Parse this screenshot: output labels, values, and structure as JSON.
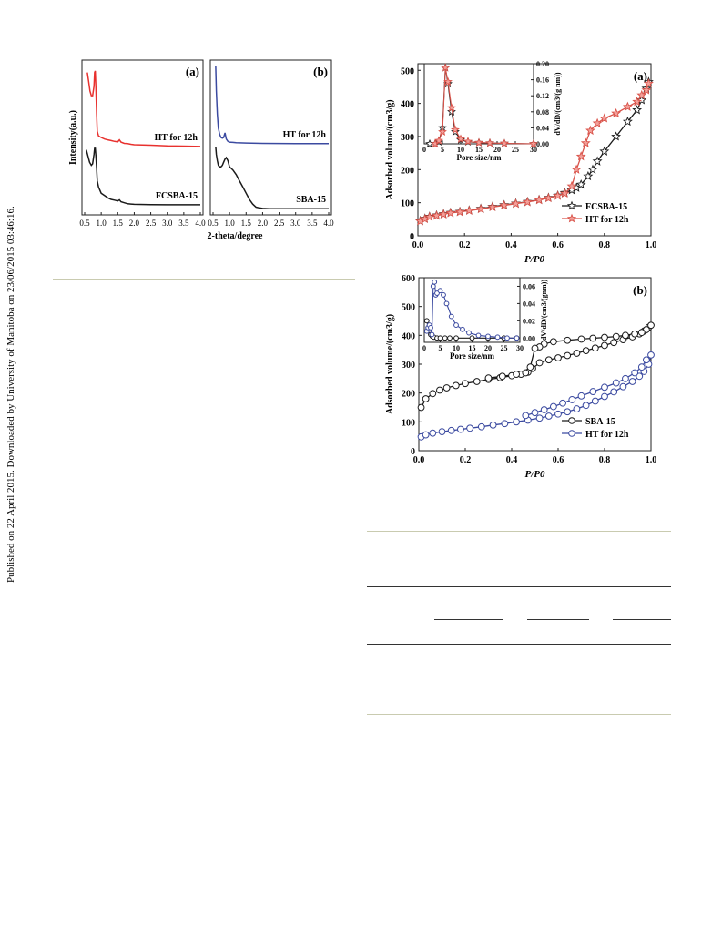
{
  "side_note": "Published on 22 April 2015. Downloaded by University of Manitoba on 23/06/2015 03:46:16.",
  "xrd": {
    "xlabel": "2-theta/degree",
    "ylabel": "Intensity(a.u.)",
    "xticks": [
      "0.5",
      "1.0",
      "1.5",
      "2.0",
      "2.5",
      "3.0",
      "3.5",
      "4.0"
    ],
    "xlim": [
      0.5,
      4.0
    ],
    "panels": [
      {
        "label": "(a)",
        "series": [
          {
            "name": "HT for 12h",
            "color": "#e8312e",
            "x": [
              0.58,
              0.62,
              0.66,
              0.7,
              0.74,
              0.78,
              0.8,
              0.82,
              0.84,
              0.86,
              0.88,
              0.92,
              1.0,
              1.1,
              1.2,
              1.3,
              1.4,
              1.5,
              1.55,
              1.6,
              1.7,
              1.8,
              1.9,
              2.0,
              2.5,
              3.0,
              3.5,
              4.0
            ],
            "y": [
              9.2,
              8.6,
              8.0,
              7.7,
              7.7,
              8.3,
              9.2,
              9.3,
              8.2,
              6.5,
              5.4,
              5.1,
              5.0,
              4.9,
              4.85,
              4.8,
              4.75,
              4.72,
              4.85,
              4.7,
              4.62,
              4.6,
              4.56,
              4.53,
              4.5,
              4.46,
              4.44,
              4.42
            ]
          },
          {
            "name": "FCSBA-15",
            "color": "#1a1a1a",
            "x": [
              0.55,
              0.6,
              0.65,
              0.7,
              0.74,
              0.78,
              0.8,
              0.82,
              0.84,
              0.86,
              0.88,
              0.92,
              1.0,
              1.1,
              1.2,
              1.3,
              1.4,
              1.5,
              1.55,
              1.6,
              1.7,
              1.8,
              1.9,
              2.0,
              2.5,
              3.0,
              3.5,
              4.0
            ],
            "y": [
              4.2,
              3.8,
              3.4,
              3.2,
              3.3,
              3.9,
              4.3,
              4.3,
              3.8,
              3.0,
              2.2,
              1.8,
              1.4,
              1.25,
              1.1,
              1.0,
              0.95,
              0.9,
              0.97,
              0.85,
              0.78,
              0.72,
              0.7,
              0.68,
              0.66,
              0.65,
              0.65,
              0.65
            ]
          }
        ]
      },
      {
        "label": "(b)",
        "series": [
          {
            "name": "HT for 12h",
            "color": "#3b4aa0",
            "x": [
              0.58,
              0.6,
              0.63,
              0.66,
              0.7,
              0.74,
              0.78,
              0.82,
              0.86,
              0.9,
              0.95,
              1.0,
              1.1,
              1.2,
              1.5,
              2.0,
              2.5,
              3.0,
              3.5,
              4.0
            ],
            "y": [
              9.6,
              8.0,
              6.5,
              5.6,
              5.2,
              5.0,
              4.95,
              5.0,
              5.3,
              4.9,
              4.75,
              4.7,
              4.68,
              4.66,
              4.64,
              4.62,
              4.61,
              4.6,
              4.6,
              4.6
            ]
          },
          {
            "name": "SBA-15",
            "color": "#1a1a1a",
            "x": [
              0.58,
              0.6,
              0.63,
              0.66,
              0.7,
              0.74,
              0.78,
              0.82,
              0.86,
              0.9,
              0.95,
              1.0,
              1.05,
              1.1,
              1.2,
              1.3,
              1.4,
              1.5,
              1.6,
              1.7,
              1.8,
              1.9,
              2.0,
              2.2,
              2.5,
              3.0,
              3.5,
              4.0
            ],
            "y": [
              4.4,
              3.9,
              3.5,
              3.2,
              3.1,
              3.1,
              3.2,
              3.4,
              3.6,
              3.7,
              3.5,
              3.1,
              3.0,
              2.9,
              2.6,
              2.2,
              1.8,
              1.4,
              1.0,
              0.7,
              0.5,
              0.45,
              0.42,
              0.4,
              0.4,
              0.4,
              0.4,
              0.4
            ]
          }
        ]
      }
    ]
  },
  "chart_data": [
    {
      "type": "line",
      "label": "(a)",
      "xlabel": "P/P0",
      "ylabel": "Adsorbed volume/(cm3/g)",
      "xlim": [
        0,
        1.0
      ],
      "ylim": [
        0,
        520
      ],
      "xticks": [
        "0.0",
        "0.2",
        "0.4",
        "0.6",
        "0.8",
        "1.0"
      ],
      "yticks": [
        "0",
        "100",
        "200",
        "300",
        "400",
        "500"
      ],
      "legend_position": "bottom-right",
      "series": [
        {
          "name": "FCSBA-15",
          "color": "#1a1a1a",
          "marker": "star-open",
          "x": [
            0.01,
            0.03,
            0.05,
            0.08,
            0.11,
            0.14,
            0.18,
            0.22,
            0.27,
            0.32,
            0.37,
            0.42,
            0.47,
            0.52,
            0.56,
            0.6,
            0.63,
            0.66,
            0.68,
            0.7,
            0.73,
            0.75,
            0.77,
            0.8,
            0.85,
            0.9,
            0.94,
            0.96,
            0.98,
            0.99
          ],
          "y": [
            45,
            52,
            58,
            62,
            66,
            70,
            73,
            77,
            82,
            88,
            93,
            98,
            103,
            109,
            115,
            122,
            130,
            138,
            145,
            155,
            180,
            200,
            225,
            255,
            300,
            345,
            380,
            410,
            445,
            465
          ]
        },
        {
          "name": "HT for 12h",
          "color": "#d9534a",
          "marker": "star-filled",
          "x": [
            0.01,
            0.03,
            0.05,
            0.08,
            0.11,
            0.14,
            0.18,
            0.22,
            0.27,
            0.32,
            0.37,
            0.42,
            0.47,
            0.52,
            0.56,
            0.6,
            0.63,
            0.66,
            0.68,
            0.7,
            0.72,
            0.74,
            0.77,
            0.8,
            0.85,
            0.9,
            0.94,
            0.96,
            0.98,
            0.99
          ],
          "y": [
            44,
            51,
            57,
            61,
            65,
            69,
            72,
            76,
            81,
            87,
            92,
            97,
            102,
            108,
            114,
            121,
            128,
            150,
            200,
            240,
            280,
            318,
            340,
            355,
            370,
            390,
            405,
            425,
            440,
            460
          ]
        }
      ]
    },
    {
      "type": "line",
      "label": "(a) inset",
      "xlabel": "Pore size/nm",
      "ylabel": "dV/dD/(cm3/(g nm))",
      "xlim": [
        0,
        30
      ],
      "ylim": [
        0,
        0.2
      ],
      "xticks": [
        "0",
        "5",
        "10",
        "15",
        "20",
        "25",
        "30"
      ],
      "yticks": [
        "0.00",
        "0.04",
        "0.08",
        "0.12",
        "0.16",
        "0.20"
      ],
      "series": [
        {
          "name": "FCSBA-15",
          "color": "#1a1a1a",
          "x": [
            1.5,
            3.0,
            4.0,
            5.0,
            5.8,
            6.5,
            7.5,
            8.5,
            10,
            12,
            15,
            18,
            22,
            30
          ],
          "y": [
            0.0,
            0.0,
            0.005,
            0.04,
            0.19,
            0.15,
            0.08,
            0.03,
            0.01,
            0.005,
            0.003,
            0.002,
            0.001,
            0.0
          ]
        },
        {
          "name": "HT for 12h",
          "color": "#d9534a",
          "x": [
            3.0,
            4.0,
            5.0,
            5.8,
            6.5,
            7.5,
            8.5,
            10,
            12,
            15,
            18,
            22,
            30
          ],
          "y": [
            0.0,
            0.008,
            0.03,
            0.19,
            0.155,
            0.09,
            0.035,
            0.012,
            0.006,
            0.003,
            0.002,
            0.001,
            0.0
          ]
        }
      ]
    },
    {
      "type": "line",
      "label": "(b)",
      "xlabel": "P/P0",
      "ylabel": "Adsorbed volume/(cm3/g)",
      "xlim": [
        0,
        1.0
      ],
      "ylim": [
        0,
        600
      ],
      "xticks": [
        "0.0",
        "0.2",
        "0.4",
        "0.6",
        "0.8",
        "1.0"
      ],
      "yticks": [
        "0",
        "100",
        "200",
        "300",
        "400",
        "500",
        "600"
      ],
      "legend_position": "bottom-right",
      "series": [
        {
          "name": "SBA-15",
          "color": "#1a1a1a",
          "marker": "circle-open",
          "x": [
            0.01,
            0.03,
            0.06,
            0.09,
            0.12,
            0.16,
            0.2,
            0.25,
            0.3,
            0.35,
            0.4,
            0.44,
            0.47,
            0.49,
            0.52,
            0.56,
            0.6,
            0.64,
            0.68,
            0.72,
            0.76,
            0.8,
            0.84,
            0.88,
            0.92,
            0.95,
            0.97,
            0.99,
            1.0,
            0.98,
            0.96,
            0.93,
            0.89,
            0.85,
            0.8,
            0.75,
            0.7,
            0.64,
            0.58,
            0.54,
            0.52,
            0.5,
            0.48,
            0.46,
            0.42,
            0.36,
            0.3
          ],
          "y": [
            150,
            180,
            198,
            210,
            218,
            226,
            233,
            240,
            247,
            253,
            260,
            265,
            272,
            285,
            305,
            315,
            322,
            330,
            338,
            347,
            356,
            365,
            375,
            385,
            395,
            405,
            415,
            428,
            435,
            420,
            410,
            405,
            400,
            396,
            393,
            390,
            387,
            383,
            378,
            370,
            360,
            355,
            290,
            270,
            265,
            258,
            252
          ]
        },
        {
          "name": "HT for 12h",
          "color": "#3b4aa0",
          "marker": "circle-open",
          "x": [
            0.01,
            0.03,
            0.06,
            0.1,
            0.14,
            0.18,
            0.22,
            0.27,
            0.32,
            0.37,
            0.42,
            0.47,
            0.52,
            0.56,
            0.6,
            0.64,
            0.68,
            0.72,
            0.76,
            0.8,
            0.84,
            0.88,
            0.92,
            0.95,
            0.97,
            0.99,
            1.0,
            0.98,
            0.96,
            0.93,
            0.89,
            0.85,
            0.8,
            0.75,
            0.7,
            0.66,
            0.62,
            0.58,
            0.54,
            0.5,
            0.46
          ],
          "y": [
            48,
            55,
            61,
            66,
            70,
            74,
            78,
            83,
            89,
            94,
            100,
            106,
            113,
            120,
            127,
            135,
            145,
            157,
            172,
            188,
            204,
            222,
            240,
            258,
            275,
            300,
            332,
            315,
            290,
            270,
            250,
            235,
            220,
            205,
            190,
            177,
            165,
            153,
            142,
            132,
            122
          ]
        }
      ]
    },
    {
      "type": "line",
      "label": "(b) inset",
      "xlabel": "Pore size/nm",
      "ylabel": "dV/dD/(cm3/(gnm))",
      "xlim": [
        0,
        30
      ],
      "ylim": [
        -0.005,
        0.07
      ],
      "xticks": [
        "0",
        "5",
        "10",
        "15",
        "20",
        "25",
        "30"
      ],
      "yticks": [
        "0.00",
        "0.02",
        "0.04",
        "0.06"
      ],
      "series": [
        {
          "name": "SBA-15",
          "color": "#1a1a1a",
          "x": [
            0.8,
            1.2,
            1.6,
            2.0,
            2.5,
            3.0,
            4.0,
            5.0,
            6.5,
            8.0,
            10,
            15,
            20,
            25,
            29
          ],
          "y": [
            0.02,
            0.012,
            0.008,
            0.004,
            0.002,
            0.001,
            0.0,
            0.0,
            0.0,
            0.0,
            0.0,
            0.0,
            0.0,
            0.0,
            0.0
          ]
        },
        {
          "name": "HT for 12h",
          "color": "#3b4aa0",
          "x": [
            0.8,
            1.2,
            1.6,
            2.0,
            2.4,
            2.8,
            3.2,
            3.6,
            4.0,
            5.0,
            6.0,
            7.0,
            8.5,
            10,
            12,
            14,
            17,
            20,
            23,
            26,
            29
          ],
          "y": [
            0.008,
            0.012,
            0.015,
            0.012,
            0.004,
            0.06,
            0.065,
            0.05,
            0.052,
            0.055,
            0.05,
            0.04,
            0.025,
            0.015,
            0.01,
            0.006,
            0.003,
            0.002,
            0.001,
            0.0,
            0.0
          ]
        }
      ]
    }
  ]
}
